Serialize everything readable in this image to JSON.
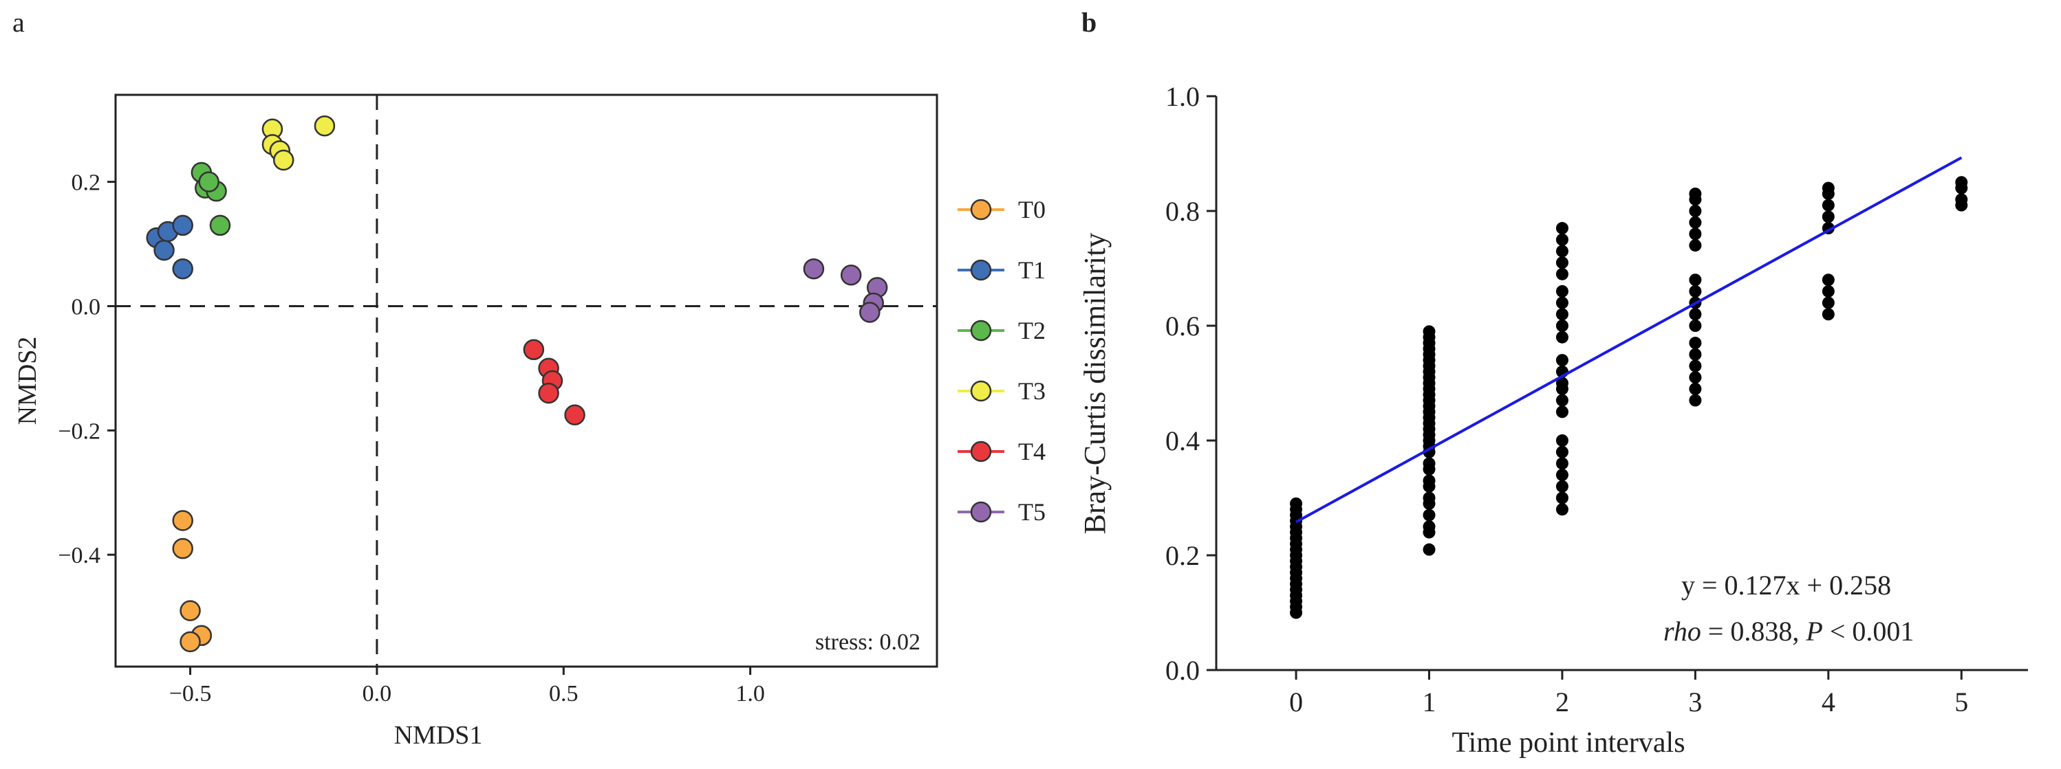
{
  "chart_data": [
    {
      "panel_label": "a",
      "type": "scatter",
      "xlabel": "NMDS1",
      "ylabel": "NMDS2",
      "xlim": [
        -0.7,
        1.5
      ],
      "ylim": [
        -0.58,
        0.34
      ],
      "xticks": [
        -0.5,
        0.0,
        0.5,
        1.0
      ],
      "xtick_labels": [
        "−0.5",
        "0.0",
        "0.5",
        "1.0"
      ],
      "yticks": [
        -0.4,
        -0.2,
        0.0,
        0.2
      ],
      "ytick_labels": [
        "−0.4",
        "−0.2",
        "0.0",
        "0.2"
      ],
      "reference_lines": {
        "x": 0.0,
        "y": 0.0,
        "style": "dashed"
      },
      "annotation": "stress: 0.02",
      "legend_placement": "right",
      "series": [
        {
          "name": "T0",
          "color": "#f7a842",
          "x": [
            -0.52,
            -0.52,
            -0.5,
            -0.47,
            -0.5
          ],
          "y": [
            -0.345,
            -0.39,
            -0.49,
            -0.53,
            -0.54
          ]
        },
        {
          "name": "T1",
          "color": "#3f6fb5",
          "x": [
            -0.59,
            -0.57,
            -0.56,
            -0.52,
            -0.52
          ],
          "y": [
            0.11,
            0.09,
            0.12,
            0.13,
            0.06
          ]
        },
        {
          "name": "T2",
          "color": "#5bb84b",
          "x": [
            -0.47,
            -0.46,
            -0.43,
            -0.42,
            -0.45
          ],
          "y": [
            0.215,
            0.19,
            0.185,
            0.13,
            0.2
          ]
        },
        {
          "name": "T3",
          "color": "#f0ec4a",
          "x": [
            -0.28,
            -0.28,
            -0.26,
            -0.25,
            -0.14
          ],
          "y": [
            0.285,
            0.26,
            0.25,
            0.235,
            0.29
          ]
        },
        {
          "name": "T4",
          "color": "#e8383d",
          "x": [
            0.42,
            0.46,
            0.47,
            0.46,
            0.53
          ],
          "y": [
            -0.07,
            -0.1,
            -0.12,
            -0.14,
            -0.175
          ]
        },
        {
          "name": "T5",
          "color": "#9268ad",
          "x": [
            1.17,
            1.27,
            1.34,
            1.33,
            1.32
          ],
          "y": [
            0.06,
            0.05,
            0.03,
            0.005,
            -0.01
          ]
        }
      ]
    },
    {
      "panel_label": "b",
      "type": "scatter",
      "xlabel": "Time point intervals",
      "ylabel": "Bray-Curtis dissimilarity",
      "xlim": [
        -0.6,
        5.5
      ],
      "ylim": [
        0.0,
        1.0
      ],
      "xticks": [
        0,
        1,
        2,
        3,
        4,
        5
      ],
      "xtick_labels": [
        "0",
        "1",
        "2",
        "3",
        "4",
        "5"
      ],
      "yticks": [
        0.0,
        0.2,
        0.4,
        0.6,
        0.8,
        1.0
      ],
      "ytick_labels": [
        "0.0",
        "0.2",
        "0.4",
        "0.6",
        "0.8",
        "1.0"
      ],
      "point_color": "#000000",
      "fit_line": {
        "slope": 0.127,
        "intercept": 0.258,
        "x_range": [
          0,
          5
        ],
        "color": "#1a1ae6"
      },
      "equation": "y = 0.127x + 0.258",
      "stats": {
        "rho_label": "rho",
        "rho_text": " = 0.838, ",
        "p_label": "P",
        "p_text": " < 0.001"
      },
      "points": [
        {
          "x": 0,
          "y": [
            0.1,
            0.11,
            0.12,
            0.13,
            0.14,
            0.15,
            0.16,
            0.17,
            0.18,
            0.19,
            0.2,
            0.21,
            0.22,
            0.23,
            0.24,
            0.25,
            0.26,
            0.27,
            0.28,
            0.29
          ]
        },
        {
          "x": 1,
          "y": [
            0.21,
            0.24,
            0.25,
            0.27,
            0.29,
            0.3,
            0.32,
            0.33,
            0.35,
            0.36,
            0.38,
            0.39,
            0.4,
            0.41,
            0.42,
            0.43,
            0.44,
            0.45,
            0.46,
            0.47,
            0.48,
            0.49,
            0.5,
            0.51,
            0.52,
            0.53,
            0.54,
            0.55,
            0.56,
            0.57,
            0.58,
            0.59
          ]
        },
        {
          "x": 2,
          "y": [
            0.28,
            0.3,
            0.32,
            0.34,
            0.36,
            0.38,
            0.4,
            0.45,
            0.47,
            0.49,
            0.5,
            0.52,
            0.54,
            0.58,
            0.6,
            0.62,
            0.64,
            0.66,
            0.69,
            0.71,
            0.73,
            0.75,
            0.77
          ]
        },
        {
          "x": 3,
          "y": [
            0.47,
            0.49,
            0.51,
            0.53,
            0.55,
            0.57,
            0.6,
            0.62,
            0.64,
            0.66,
            0.68,
            0.74,
            0.76,
            0.78,
            0.8,
            0.82,
            0.83
          ]
        },
        {
          "x": 4,
          "y": [
            0.62,
            0.64,
            0.66,
            0.68,
            0.77,
            0.79,
            0.81,
            0.83,
            0.84
          ]
        },
        {
          "x": 5,
          "y": [
            0.81,
            0.82,
            0.84,
            0.85
          ]
        }
      ]
    }
  ]
}
